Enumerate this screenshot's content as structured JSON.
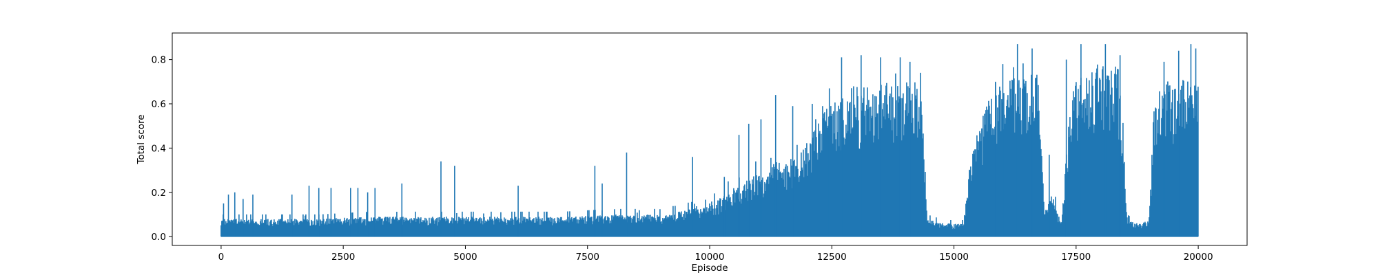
{
  "chart_data": {
    "type": "line",
    "title": "",
    "xlabel": "Episode",
    "ylabel": "Total score",
    "xlim": [
      -1000,
      21000
    ],
    "ylim": [
      -0.04,
      0.92
    ],
    "xticks": [
      0,
      2500,
      5000,
      7500,
      10000,
      12500,
      15000,
      17500,
      20000
    ],
    "xtick_labels": [
      "0",
      "2500",
      "5000",
      "7500",
      "10000",
      "12500",
      "15000",
      "17500",
      "20000"
    ],
    "yticks": [
      0.0,
      0.2,
      0.4,
      0.6,
      0.8
    ],
    "ytick_labels": [
      "0.0",
      "0.2",
      "0.4",
      "0.6",
      "0.8"
    ],
    "grid": false,
    "legend": "none",
    "series_color": "#1f77b4",
    "series": [
      {
        "n_points": 20000,
        "x_range": [
          0,
          20000
        ],
        "floor": 0.0,
        "envelope": {
          "x": [
            0,
            1000,
            2000,
            3000,
            4000,
            5000,
            6000,
            7000,
            8000,
            9000,
            9500,
            10000,
            10500,
            11000,
            11500,
            11800,
            12000,
            12500,
            13000,
            14000,
            14350,
            14450,
            14800,
            15200,
            15300,
            15500,
            15800,
            16000,
            16500,
            16750,
            16850,
            17000,
            17200,
            17400,
            17700,
            18000,
            18400,
            18550,
            18700,
            19000,
            19100,
            19300,
            19600,
            20000
          ],
          "y": [
            0.08,
            0.08,
            0.08,
            0.09,
            0.09,
            0.09,
            0.09,
            0.09,
            0.1,
            0.1,
            0.12,
            0.14,
            0.22,
            0.3,
            0.35,
            0.38,
            0.46,
            0.62,
            0.69,
            0.7,
            0.7,
            0.08,
            0.06,
            0.06,
            0.3,
            0.5,
            0.66,
            0.7,
            0.75,
            0.74,
            0.1,
            0.2,
            0.06,
            0.68,
            0.74,
            0.8,
            0.76,
            0.08,
            0.06,
            0.07,
            0.64,
            0.7,
            0.72,
            0.72
          ]
        },
        "peaks": [
          {
            "x": 50,
            "y": 0.15
          },
          {
            "x": 150,
            "y": 0.19
          },
          {
            "x": 280,
            "y": 0.2
          },
          {
            "x": 450,
            "y": 0.17
          },
          {
            "x": 650,
            "y": 0.19
          },
          {
            "x": 1450,
            "y": 0.19
          },
          {
            "x": 1800,
            "y": 0.23
          },
          {
            "x": 2000,
            "y": 0.22
          },
          {
            "x": 2250,
            "y": 0.22
          },
          {
            "x": 2650,
            "y": 0.22
          },
          {
            "x": 2800,
            "y": 0.22
          },
          {
            "x": 3000,
            "y": 0.2
          },
          {
            "x": 3150,
            "y": 0.22
          },
          {
            "x": 3700,
            "y": 0.24
          },
          {
            "x": 4500,
            "y": 0.34
          },
          {
            "x": 4780,
            "y": 0.32
          },
          {
            "x": 6080,
            "y": 0.23
          },
          {
            "x": 7650,
            "y": 0.32
          },
          {
            "x": 7800,
            "y": 0.24
          },
          {
            "x": 8300,
            "y": 0.38
          },
          {
            "x": 9650,
            "y": 0.36
          },
          {
            "x": 10300,
            "y": 0.27
          },
          {
            "x": 10600,
            "y": 0.46
          },
          {
            "x": 10800,
            "y": 0.51
          },
          {
            "x": 11050,
            "y": 0.53
          },
          {
            "x": 11350,
            "y": 0.64
          },
          {
            "x": 11700,
            "y": 0.59
          },
          {
            "x": 12100,
            "y": 0.6
          },
          {
            "x": 12450,
            "y": 0.67
          },
          {
            "x": 12700,
            "y": 0.81
          },
          {
            "x": 13100,
            "y": 0.82
          },
          {
            "x": 13500,
            "y": 0.81
          },
          {
            "x": 13900,
            "y": 0.81
          },
          {
            "x": 14100,
            "y": 0.79
          },
          {
            "x": 15850,
            "y": 0.7
          },
          {
            "x": 16000,
            "y": 0.78
          },
          {
            "x": 16300,
            "y": 0.87
          },
          {
            "x": 16600,
            "y": 0.85
          },
          {
            "x": 16950,
            "y": 0.37
          },
          {
            "x": 17300,
            "y": 0.8
          },
          {
            "x": 17600,
            "y": 0.87
          },
          {
            "x": 18100,
            "y": 0.87
          },
          {
            "x": 18400,
            "y": 0.82
          },
          {
            "x": 19300,
            "y": 0.79
          },
          {
            "x": 19600,
            "y": 0.84
          },
          {
            "x": 19850,
            "y": 0.87
          },
          {
            "x": 19950,
            "y": 0.85
          }
        ]
      }
    ]
  }
}
